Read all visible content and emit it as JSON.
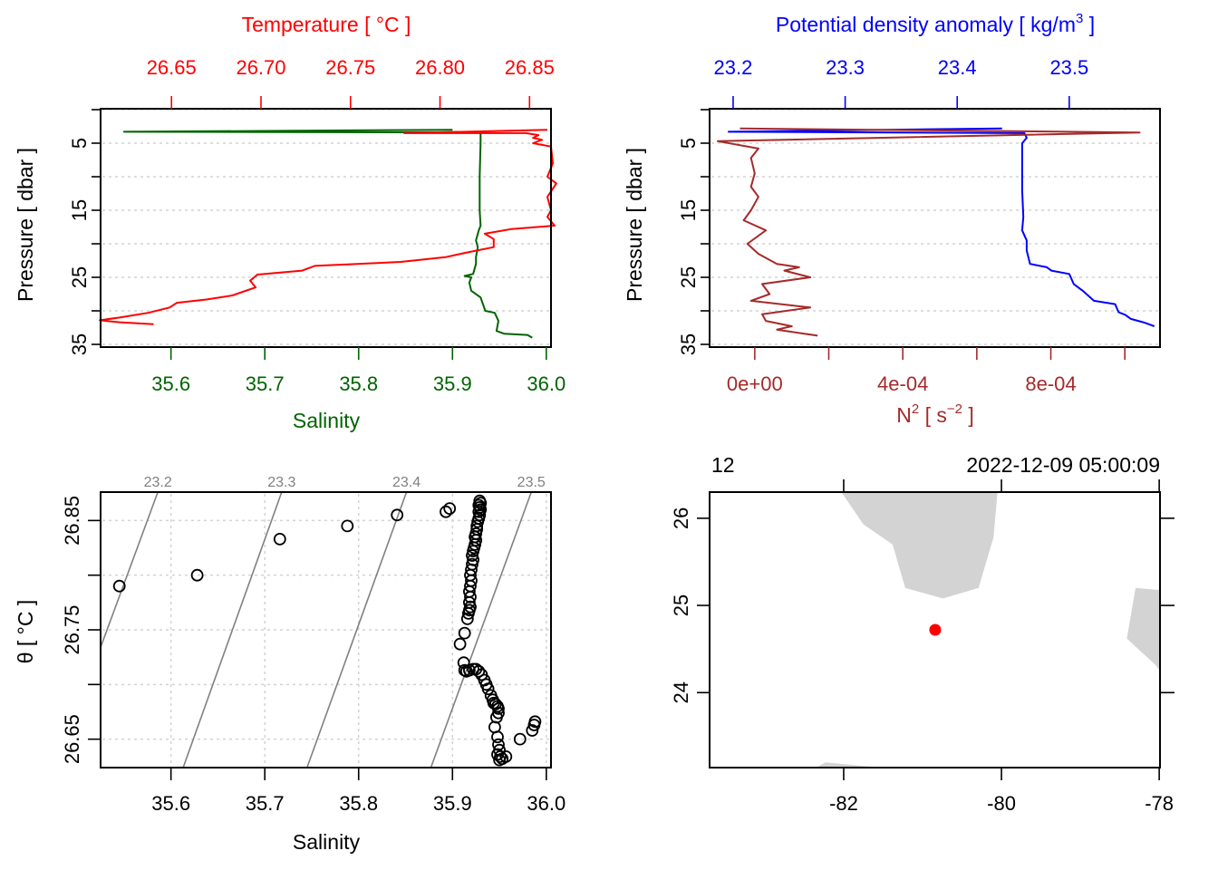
{
  "chart_data": [
    {
      "id": "profile-ts",
      "type": "line",
      "title": "",
      "y_axis": {
        "label": "Pressure [ dbar ]",
        "range": [
          0,
          35
        ],
        "reversed": true,
        "ticks": [
          5,
          15,
          25,
          35
        ],
        "minor_ticks": [
          0,
          10,
          20,
          30
        ],
        "grid": true
      },
      "x_bottom": {
        "label": "Salinity",
        "color": "#006400",
        "range": [
          35.525,
          36.005
        ],
        "ticks": [
          "35.6",
          "35.7",
          "35.8",
          "35.9",
          "36.0"
        ],
        "tick_values": [
          35.6,
          35.7,
          35.8,
          35.9,
          36.0
        ]
      },
      "x_top": {
        "label": "Temperature [ °C ]",
        "color": "#ff0000",
        "range": [
          26.6104,
          26.862
        ],
        "ticks": [
          "26.65",
          "26.70",
          "26.75",
          "26.80",
          "26.85"
        ],
        "tick_values": [
          26.65,
          26.7,
          26.75,
          26.8,
          26.85
        ]
      },
      "series": [
        {
          "name": "Salinity",
          "color": "#006400",
          "axis": "bottom",
          "points": [
            [
              35.9,
              3.0
            ],
            [
              35.55,
              3.3
            ],
            [
              35.93,
              3.4
            ],
            [
              35.93,
              5
            ],
            [
              35.929,
              10
            ],
            [
              35.929,
              15
            ],
            [
              35.93,
              17.3
            ],
            [
              35.928,
              18
            ],
            [
              35.925,
              19.5
            ],
            [
              35.927,
              20.5
            ],
            [
              35.925,
              22
            ],
            [
              35.925,
              23
            ],
            [
              35.922,
              24.5
            ],
            [
              35.913,
              24.8
            ],
            [
              35.92,
              25
            ],
            [
              35.918,
              25.8
            ],
            [
              35.92,
              27
            ],
            [
              35.93,
              28
            ],
            [
              35.935,
              30
            ],
            [
              35.945,
              30.3
            ],
            [
              35.949,
              31.5
            ],
            [
              35.947,
              33
            ],
            [
              35.955,
              33.4
            ],
            [
              35.98,
              33.6
            ],
            [
              35.985,
              34
            ]
          ]
        },
        {
          "name": "Temperature",
          "color": "#ff0000",
          "axis": "top",
          "points": [
            [
              26.86,
              3.0
            ],
            [
              26.78,
              3.5
            ],
            [
              26.848,
              3.5
            ],
            [
              26.855,
              3.8
            ],
            [
              26.852,
              4.2
            ],
            [
              26.857,
              4.5
            ],
            [
              26.852,
              5
            ],
            [
              26.862,
              5.5
            ],
            [
              26.863,
              8
            ],
            [
              26.86,
              10
            ],
            [
              26.865,
              11
            ],
            [
              26.86,
              13
            ],
            [
              26.862,
              15
            ],
            [
              26.86,
              16
            ],
            [
              26.864,
              17.3
            ],
            [
              26.84,
              17.8
            ],
            [
              26.825,
              18.5
            ],
            [
              26.83,
              19.3
            ],
            [
              26.83,
              20.5
            ],
            [
              26.815,
              21.3
            ],
            [
              26.803,
              22
            ],
            [
              26.778,
              22.7
            ],
            [
              26.73,
              23.3
            ],
            [
              26.723,
              24
            ],
            [
              26.698,
              24.6
            ],
            [
              26.694,
              25.5
            ],
            [
              26.697,
              26.5
            ],
            [
              26.684,
              27.7
            ],
            [
              26.67,
              28.3
            ],
            [
              26.653,
              28.8
            ],
            [
              26.649,
              29.5
            ],
            [
              26.637,
              30.3
            ],
            [
              26.621,
              31
            ],
            [
              26.61,
              31.4
            ],
            [
              26.621,
              31.7
            ],
            [
              26.64,
              32
            ]
          ]
        }
      ]
    },
    {
      "id": "profile-density-n2",
      "type": "line",
      "title": "",
      "y_axis": {
        "label": "Pressure [ dbar ]",
        "range": [
          0,
          35
        ],
        "reversed": true,
        "ticks": [
          5,
          15,
          25,
          35
        ],
        "minor_ticks": [
          0,
          10,
          20,
          30
        ],
        "grid": true
      },
      "x_bottom": {
        "label": "N² [ s⁻² ]",
        "label_main": "N",
        "label_sup1": "2",
        "label_mid": " [ s",
        "label_sup2": "−2",
        "label_end": " ]",
        "color": "#a52a2a",
        "range": [
          -0.000122,
          0.001095
        ],
        "ticks": [
          "0e+00",
          "",
          "4e-04",
          "",
          "8e-04",
          ""
        ],
        "tick_values": [
          0,
          0.0002,
          0.0004,
          0.0006,
          0.0008,
          0.001
        ]
      },
      "x_top": {
        "label": "Potential density anomaly [ kg/m³ ]",
        "label_main": "Potential density anomaly [ kg/m",
        "label_sup": "3",
        "label_end": " ]",
        "color": "#0000ff",
        "range": [
          23.179,
          23.581
        ],
        "ticks": [
          "23.2",
          "23.3",
          "23.4",
          "23.5"
        ],
        "tick_values": [
          23.2,
          23.3,
          23.4,
          23.5
        ]
      },
      "series": [
        {
          "name": "Potential density anomaly",
          "color": "#0000ff",
          "points": [
            [
              23.44,
              2.8
            ],
            [
              23.196,
              3.3
            ],
            [
              23.46,
              3.5
            ],
            [
              23.462,
              4.2
            ],
            [
              23.458,
              5
            ],
            [
              23.458,
              8
            ],
            [
              23.458,
              12
            ],
            [
              23.459,
              16
            ],
            [
              23.458,
              18
            ],
            [
              23.462,
              19.5
            ],
            [
              23.462,
              21
            ],
            [
              23.465,
              23
            ],
            [
              23.48,
              23.5
            ],
            [
              23.484,
              24
            ],
            [
              23.5,
              24.5
            ],
            [
              23.504,
              26
            ],
            [
              23.512,
              27
            ],
            [
              23.522,
              28.5
            ],
            [
              23.541,
              29
            ],
            [
              23.544,
              30.2
            ],
            [
              23.55,
              30.6
            ],
            [
              23.555,
              31.2
            ],
            [
              23.566,
              31.7
            ],
            [
              23.576,
              32.3
            ]
          ]
        },
        {
          "name": "N2",
          "color": "#a52a2a",
          "points": [
            [
              -4e-05,
              2.8
            ],
            [
              0.00104,
              3.4
            ],
            [
              -0.0001,
              4.7
            ],
            [
              1e-05,
              5.8
            ],
            [
              -1e-05,
              7.2
            ],
            [
              0,
              9.5
            ],
            [
              -1e-05,
              11.5
            ],
            [
              1e-05,
              13
            ],
            [
              -1e-05,
              15
            ],
            [
              -3e-05,
              16.5
            ],
            [
              3e-05,
              18
            ],
            [
              -2e-05,
              20
            ],
            [
              1e-05,
              21.5
            ],
            [
              6e-05,
              23
            ],
            [
              0.00012,
              23.5
            ],
            [
              8e-05,
              24
            ],
            [
              0.00015,
              25
            ],
            [
              2e-05,
              26
            ],
            [
              4e-05,
              27.5
            ],
            [
              -1e-05,
              28.5
            ],
            [
              0.00015,
              29.5
            ],
            [
              2e-05,
              30.5
            ],
            [
              3e-05,
              31.5
            ],
            [
              0.0001,
              32.3
            ],
            [
              6e-05,
              32.8
            ],
            [
              0.00017,
              33.7
            ]
          ]
        }
      ]
    },
    {
      "id": "ts-diagram",
      "type": "scatter",
      "title": "",
      "x_axis": {
        "label": "Salinity",
        "range": [
          35.525,
          36.005
        ],
        "ticks": [
          "35.6",
          "35.7",
          "35.8",
          "35.9",
          "36.0"
        ],
        "tick_values": [
          35.6,
          35.7,
          35.8,
          35.9,
          36.0
        ],
        "grid": true
      },
      "y_axis": {
        "label": "θ [ °C ]",
        "range": [
          26.624,
          26.876
        ],
        "ticks": [
          "26.65",
          "26.75",
          "26.85"
        ],
        "tick_values": [
          26.65,
          26.75,
          26.85
        ],
        "minor_ticks": [
          26.7,
          26.8
        ],
        "grid": true
      },
      "isopycnals": {
        "labels": [
          "23.2",
          "23.3",
          "23.4",
          "23.5"
        ],
        "values": [
          23.2,
          23.3,
          23.4,
          23.5
        ],
        "color": "#808080",
        "lines": [
          {
            "sigma": 23.2,
            "from": [
              35.525,
              26.734
            ],
            "to": [
              35.586,
              26.876
            ]
          },
          {
            "sigma": 23.3,
            "from": [
              35.613,
              26.624
            ],
            "to": [
              35.718,
              26.876
            ]
          },
          {
            "sigma": 23.4,
            "from": [
              35.745,
              26.624
            ],
            "to": [
              35.851,
              26.876
            ]
          },
          {
            "sigma": 23.5,
            "from": [
              35.877,
              26.624
            ],
            "to": [
              35.984,
              26.876
            ]
          }
        ]
      },
      "points": [
        [
          35.545,
          26.79
        ],
        [
          35.628,
          26.8
        ],
        [
          35.716,
          26.833
        ],
        [
          35.788,
          26.845
        ],
        [
          35.841,
          26.855
        ],
        [
          35.893,
          26.858
        ],
        [
          35.897,
          26.861
        ],
        [
          35.929,
          26.868
        ],
        [
          35.93,
          26.866
        ],
        [
          35.928,
          26.864
        ],
        [
          35.929,
          26.862
        ],
        [
          35.93,
          26.86
        ],
        [
          35.928,
          26.858
        ],
        [
          35.929,
          26.855
        ],
        [
          35.928,
          26.852
        ],
        [
          35.927,
          26.849
        ],
        [
          35.926,
          26.845
        ],
        [
          35.926,
          26.842
        ],
        [
          35.925,
          26.838
        ],
        [
          35.924,
          26.835
        ],
        [
          35.925,
          26.832
        ],
        [
          35.924,
          26.828
        ],
        [
          35.923,
          26.825
        ],
        [
          35.922,
          26.822
        ],
        [
          35.921,
          26.818
        ],
        [
          35.922,
          26.814
        ],
        [
          35.921,
          26.81
        ],
        [
          35.92,
          26.805
        ],
        [
          35.919,
          26.8
        ],
        [
          35.92,
          26.795
        ],
        [
          35.919,
          26.79
        ],
        [
          35.918,
          26.785
        ],
        [
          35.919,
          26.78
        ],
        [
          35.918,
          26.775
        ],
        [
          35.919,
          26.771
        ],
        [
          35.918,
          26.768
        ],
        [
          35.917,
          26.765
        ],
        [
          35.916,
          26.76
        ],
        [
          35.913,
          26.747
        ],
        [
          35.908,
          26.737
        ],
        [
          35.912,
          26.72
        ],
        [
          35.913,
          26.713
        ],
        [
          35.915,
          26.712
        ],
        [
          35.918,
          26.713
        ],
        [
          35.922,
          26.714
        ],
        [
          35.925,
          26.714
        ],
        [
          35.928,
          26.712
        ],
        [
          35.931,
          26.709
        ],
        [
          35.934,
          26.704
        ],
        [
          35.936,
          26.7
        ],
        [
          35.938,
          26.696
        ],
        [
          35.941,
          26.69
        ],
        [
          35.943,
          26.686
        ],
        [
          35.944,
          26.683
        ],
        [
          35.946,
          26.682
        ],
        [
          35.948,
          26.68
        ],
        [
          35.949,
          26.678
        ],
        [
          35.949,
          26.674
        ],
        [
          35.947,
          26.67
        ],
        [
          35.945,
          26.661
        ],
        [
          35.948,
          26.652
        ],
        [
          35.949,
          26.645
        ],
        [
          35.95,
          26.64
        ],
        [
          35.948,
          26.636
        ],
        [
          35.951,
          26.634
        ],
        [
          35.95,
          26.631
        ],
        [
          35.953,
          26.632
        ],
        [
          35.957,
          26.634
        ],
        [
          35.972,
          26.65
        ],
        [
          35.985,
          26.658
        ],
        [
          35.987,
          26.663
        ],
        [
          35.988,
          26.666
        ]
      ]
    },
    {
      "id": "location-map",
      "type": "scatter",
      "title": "",
      "top_left_label": "12",
      "top_right_label": "2022-12-09 05:00:09",
      "x_axis": {
        "label": "",
        "range": [
          -83.7,
          -77.99
        ],
        "ticks": [
          "-82",
          "-80",
          "-78"
        ],
        "tick_values": [
          -82,
          -80,
          -78
        ]
      },
      "y_axis": {
        "label": "",
        "range": [
          23.14,
          26.3
        ],
        "ticks": [
          "24",
          "25",
          "26"
        ],
        "tick_values": [
          24,
          25,
          26
        ]
      },
      "land_color": "#d3d3d3",
      "land": [
        [
          [
            -82.03,
            26.3
          ],
          [
            -81.75,
            25.93
          ],
          [
            -81.38,
            25.7
          ],
          [
            -81.22,
            25.2
          ],
          [
            -80.74,
            25.08
          ],
          [
            -80.29,
            25.2
          ],
          [
            -80.1,
            25.78
          ],
          [
            -80.05,
            26.3
          ]
        ],
        [
          [
            -78.3,
            25.2
          ],
          [
            -78.05,
            25.18
          ],
          [
            -77.99,
            25.18
          ],
          [
            -77.99,
            24.25
          ],
          [
            -78.05,
            24.32
          ],
          [
            -78.41,
            24.62
          ]
        ],
        [
          [
            -82.35,
            23.14
          ],
          [
            -82.23,
            23.2
          ],
          [
            -81.65,
            23.15
          ],
          [
            -81.6,
            23.14
          ]
        ]
      ],
      "station": {
        "lon": -80.84,
        "lat": 24.72,
        "color": "#ff0000"
      }
    }
  ]
}
